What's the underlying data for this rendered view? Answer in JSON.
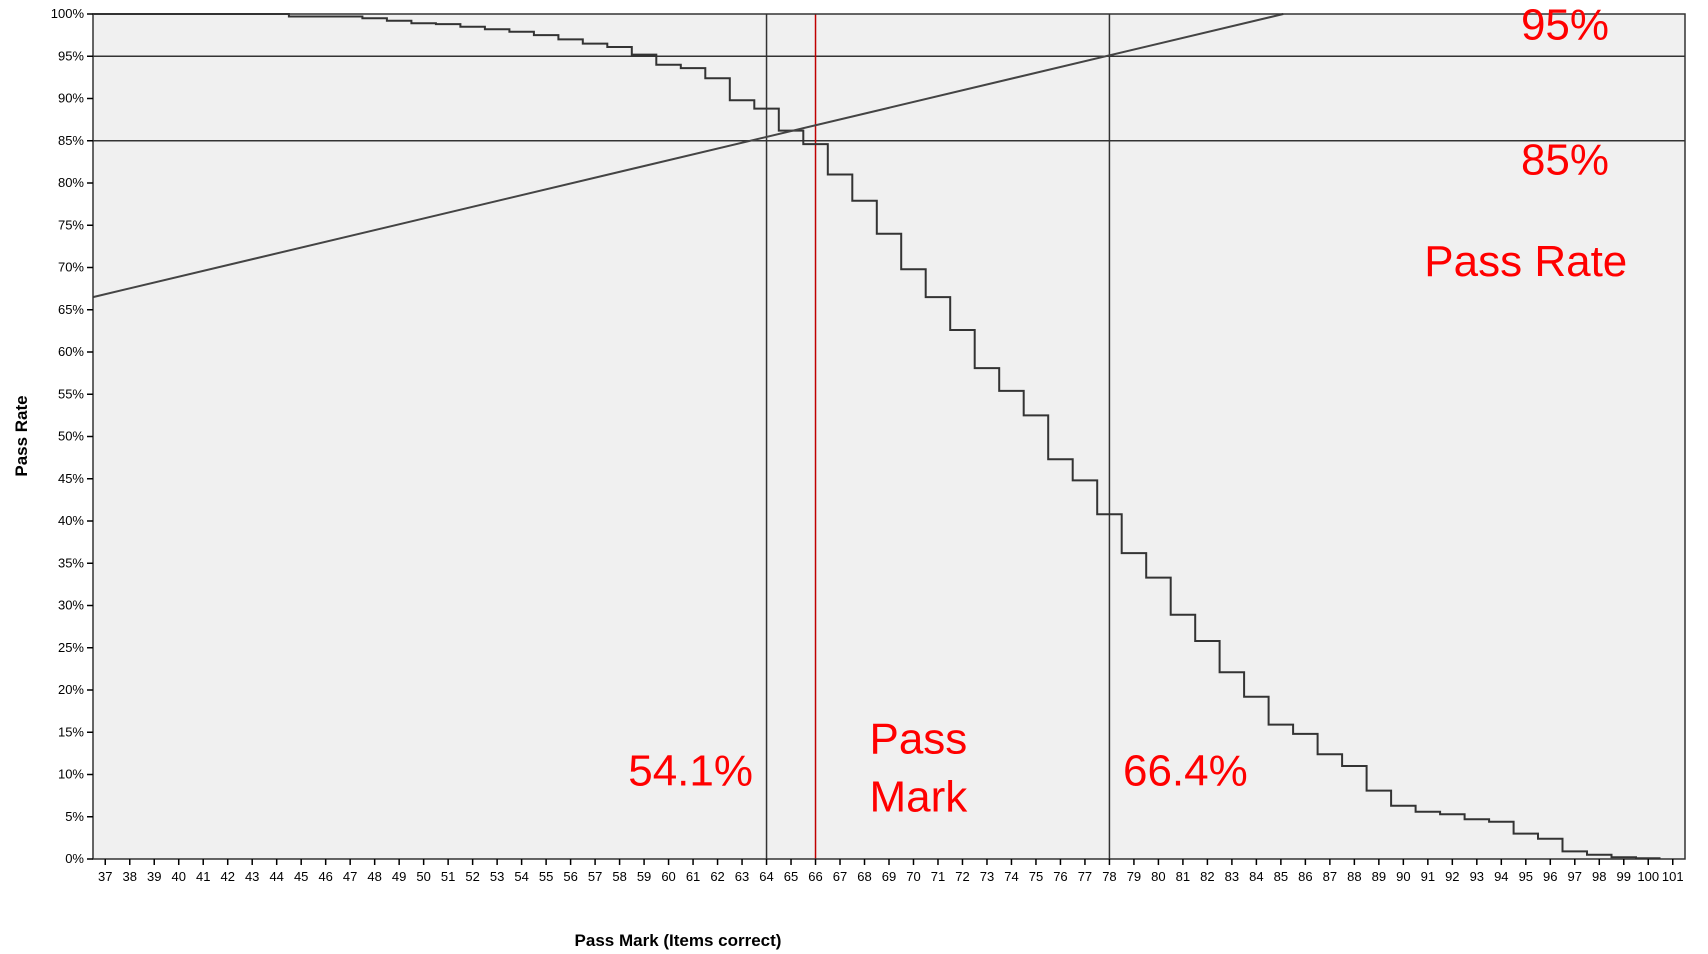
{
  "chart_data": {
    "type": "line",
    "xlabel": "Pass Mark (Items correct)",
    "ylabel": "Pass Rate",
    "xlim": [
      36.5,
      101.5
    ],
    "ylim": [
      0,
      100
    ],
    "x_ticks": [
      "37",
      "38",
      "39",
      "40",
      "41",
      "42",
      "43",
      "44",
      "45",
      "46",
      "47",
      "48",
      "49",
      "50",
      "51",
      "52",
      "53",
      "54",
      "55",
      "56",
      "57",
      "58",
      "59",
      "60",
      "61",
      "62",
      "63",
      "64",
      "65",
      "66",
      "67",
      "68",
      "69",
      "70",
      "71",
      "72",
      "73",
      "74",
      "75",
      "76",
      "77",
      "78",
      "79",
      "80",
      "81",
      "82",
      "83",
      "84",
      "85",
      "86",
      "87",
      "88",
      "89",
      "90",
      "91",
      "92",
      "93",
      "94",
      "95",
      "96",
      "97",
      "98",
      "99",
      "100",
      "101"
    ],
    "y_ticks": [
      "0%",
      "5%",
      "10%",
      "15%",
      "20%",
      "25%",
      "30%",
      "35%",
      "40%",
      "45%",
      "50%",
      "55%",
      "60%",
      "65%",
      "70%",
      "75%",
      "80%",
      "85%",
      "90%",
      "95%",
      "100%"
    ],
    "grid": false,
    "series": [
      {
        "style": "step",
        "x": [
          37,
          38,
          39,
          40,
          41,
          42,
          43,
          44,
          45,
          46,
          47,
          48,
          49,
          50,
          51,
          52,
          53,
          54,
          55,
          56,
          57,
          58,
          59,
          60,
          61,
          62,
          63,
          64,
          65,
          66,
          67,
          68,
          69,
          70,
          71,
          72,
          73,
          74,
          75,
          76,
          77,
          78,
          79,
          80,
          81,
          82,
          83,
          84,
          85,
          86,
          87,
          88,
          89,
          90,
          91,
          92,
          93,
          94,
          95,
          96,
          97,
          98,
          99,
          100
        ],
        "y": [
          100,
          100,
          100,
          100,
          100,
          100,
          100,
          100,
          99.7,
          99.7,
          99.7,
          99.5,
          99.2,
          98.9,
          98.8,
          98.5,
          98.2,
          97.9,
          97.5,
          97.0,
          96.5,
          96.1,
          95.2,
          94.0,
          93.6,
          92.4,
          89.8,
          88.8,
          86.2,
          84.6,
          81.0,
          77.9,
          74.0,
          69.8,
          66.5,
          62.6,
          58.1,
          55.4,
          52.5,
          47.3,
          44.8,
          40.8,
          36.2,
          33.3,
          28.9,
          25.8,
          22.1,
          19.2,
          15.9,
          14.8,
          12.4,
          11.0,
          8.1,
          6.3,
          5.6,
          5.3,
          4.7,
          4.4,
          3.0,
          2.4,
          0.9,
          0.5,
          0.2,
          0.1
        ]
      },
      {
        "style": "line",
        "x": [
          36.5,
          85.1
        ],
        "y": [
          66.5,
          100
        ]
      }
    ],
    "reference_lines": [
      {
        "axis": "y",
        "value": 95,
        "color": "#333333"
      },
      {
        "axis": "y",
        "value": 85,
        "color": "#333333"
      },
      {
        "axis": "x",
        "value": 64,
        "color": "#333333"
      },
      {
        "axis": "x",
        "value": 66,
        "color": "#c00000"
      },
      {
        "axis": "x",
        "value": 78,
        "color": "#333333"
      }
    ],
    "annotations": [
      {
        "text": "95%",
        "x": 96.6,
        "y": 97
      },
      {
        "text": "85%",
        "x": 96.6,
        "y": 81
      },
      {
        "text": "Pass Rate",
        "x": 95,
        "y": 69
      },
      {
        "text": "Pass",
        "x": 70.2,
        "y": 12.5
      },
      {
        "text": "Mark",
        "x": 70.2,
        "y": 5.6
      },
      {
        "text": "54.1%",
        "x": 60.9,
        "y": 8.7
      },
      {
        "text": "66.4%",
        "x": 81.1,
        "y": 8.7
      }
    ],
    "colors": {
      "plot_background": "#f0f0f0",
      "step_line": "#333333",
      "trend_line": "#444444",
      "annotation": "#ff0000"
    }
  }
}
